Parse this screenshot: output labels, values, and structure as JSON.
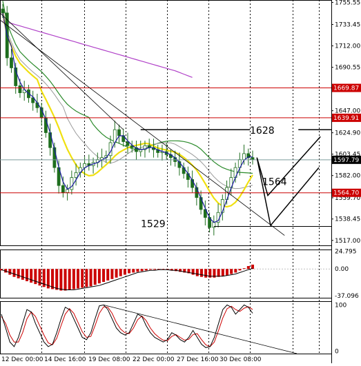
{
  "colors": {
    "background": "#ffffff",
    "grid": "#000000",
    "candle_up": "#1e6e1e",
    "candle_down": "#1e6e1e",
    "fast_ma": "#1a1aa0",
    "yellow_ma": "#f0e010",
    "green_ma": "#2a8a2a",
    "magenta_ma": "#b040c8",
    "gray_ma": "#9a9a9a",
    "level_line": "#cc0000",
    "level_tag_bg": "#cc0000",
    "level_tag_text": "#ffffff",
    "current_tag_bg": "#000000",
    "current_tag_text": "#ffffff",
    "macd_hist": "#cc0000",
    "macd_signal": "#000000",
    "stoch_main": "#000000",
    "stoch_signal": "#cc0000",
    "annotation": "#000000"
  },
  "chart_data": [
    {
      "type": "candlestick",
      "title": "",
      "ylim": [
        1512.0,
        1758.0
      ],
      "price_ticks": [
        "1755.55",
        "1733.45",
        "1712.00",
        "1690.55",
        "1647.00",
        "1624.90",
        "1603.45",
        "1582.00",
        "1559.70",
        "1538.45",
        "1517.00"
      ],
      "price_tick_values": [
        1755.55,
        1733.45,
        1712.0,
        1690.55,
        1647.0,
        1624.9,
        1603.45,
        1582.0,
        1559.7,
        1538.45,
        1517.0
      ],
      "levels": [
        {
          "label": "1669.87",
          "value": 1669.87
        },
        {
          "label": "1639.91",
          "value": 1639.91
        },
        {
          "label": "1564.70",
          "value": 1564.7
        }
      ],
      "current_price": {
        "label": "1597.79",
        "value": 1597.79
      },
      "annotations": [
        {
          "text": "1628",
          "value": 1628
        },
        {
          "text": "1564",
          "value": 1564
        },
        {
          "text": "1529",
          "value": 1529
        }
      ],
      "close_path": [
        1745,
        1700,
        1690,
        1672,
        1665,
        1668,
        1660,
        1655,
        1650,
        1640,
        1625,
        1610,
        1590,
        1572,
        1565,
        1568,
        1580,
        1585,
        1590,
        1594,
        1592,
        1595,
        1598,
        1600,
        1602,
        1615,
        1628,
        1622,
        1616,
        1612,
        1610,
        1606,
        1608,
        1612,
        1610,
        1608,
        1605,
        1606,
        1603,
        1600,
        1596,
        1590,
        1584,
        1578,
        1570,
        1560,
        1548,
        1540,
        1530,
        1535,
        1545,
        1558,
        1570,
        1580,
        1590,
        1598,
        1604,
        1600,
        1598
      ]
    },
    {
      "type": "bar",
      "title": "",
      "ylim": [
        -40.0,
        27.0
      ],
      "ticks": [
        "24.795",
        "0.00",
        "-37.096"
      ],
      "tick_values": [
        24.795,
        0.0,
        -37.096
      ],
      "macd_values": [
        -2,
        -5,
        -8,
        -11,
        -13,
        -15,
        -17,
        -19,
        -21,
        -23,
        -25,
        -27,
        -28,
        -29,
        -30,
        -30,
        -29,
        -28,
        -27,
        -26,
        -25,
        -24,
        -22,
        -20,
        -18,
        -16,
        -14,
        -12,
        -10,
        -8,
        -6,
        -5,
        -4,
        -3,
        -2,
        -1,
        -1,
        -1,
        -1,
        -1,
        -2,
        -3,
        -4,
        -5,
        -6,
        -8,
        -10,
        -11,
        -12,
        -12,
        -12,
        -11,
        -10,
        -9,
        -7,
        -5,
        -2,
        1,
        4,
        6
      ],
      "signal_values": [
        -1,
        -3,
        -5,
        -7,
        -9,
        -11,
        -13,
        -15,
        -17,
        -19,
        -21,
        -23,
        -25,
        -27,
        -28,
        -29,
        -29,
        -29,
        -28,
        -27,
        -26,
        -25,
        -24,
        -23,
        -21,
        -19,
        -17,
        -15,
        -13,
        -11,
        -9,
        -7,
        -5,
        -4,
        -3,
        -2,
        -2,
        -1,
        -1,
        -1,
        -2,
        -2,
        -3,
        -4,
        -5,
        -6,
        -7,
        -8,
        -9,
        -10,
        -10,
        -10,
        -10,
        -9,
        -8,
        -7,
        -5,
        -3,
        -1,
        1
      ]
    },
    {
      "type": "line",
      "title": "",
      "ylim": [
        -5,
        108
      ],
      "ticks": [
        "100",
        "0"
      ],
      "tick_values": [
        100,
        0
      ],
      "categories": [
        "12 Dec 00:00",
        "14 Dec 16:00",
        "19 Dec 08:00",
        "22 Dec 00:00",
        "27 Dec 16:00",
        "30 Dec 08:00"
      ],
      "k_values": [
        80,
        50,
        20,
        10,
        30,
        60,
        90,
        85,
        60,
        40,
        20,
        10,
        15,
        40,
        70,
        95,
        90,
        70,
        50,
        30,
        25,
        40,
        70,
        98,
        100,
        90,
        70,
        50,
        40,
        35,
        40,
        60,
        80,
        75,
        55,
        40,
        30,
        25,
        20,
        25,
        40,
        35,
        25,
        20,
        30,
        45,
        30,
        15,
        8,
        10,
        30,
        60,
        90,
        100,
        95,
        80,
        90,
        100,
        95,
        82
      ],
      "d_values": [
        75,
        60,
        35,
        20,
        20,
        40,
        70,
        85,
        75,
        55,
        35,
        18,
        14,
        28,
        55,
        80,
        92,
        82,
        62,
        42,
        30,
        32,
        55,
        82,
        96,
        95,
        82,
        62,
        48,
        40,
        38,
        50,
        68,
        76,
        66,
        50,
        38,
        30,
        24,
        23,
        32,
        36,
        30,
        24,
        26,
        36,
        38,
        25,
        14,
        10,
        20,
        45,
        72,
        92,
        97,
        90,
        86,
        93,
        96,
        90
      ]
    }
  ]
}
